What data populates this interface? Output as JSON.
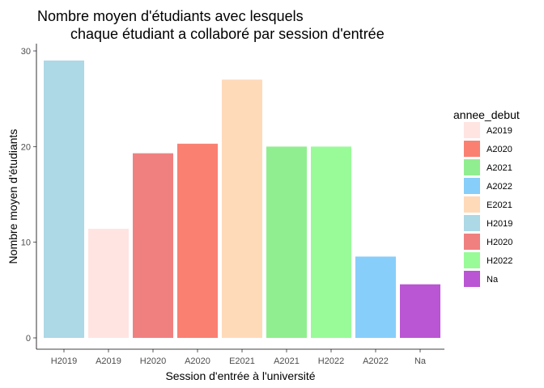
{
  "chart_data": {
    "type": "bar",
    "title_line1": "Nombre moyen d'étudiants avec lesquels",
    "title_line2": "chaque étudiant a collaboré par session d'entrée",
    "xlabel": "Session d'entrée à l'université",
    "ylabel": "Nombre moyen d'étudiants",
    "ylim": [
      0,
      30
    ],
    "yticks": [
      0,
      10,
      20,
      30
    ],
    "grid": false,
    "legend_position": "right",
    "legend_title": "annee_debut",
    "categories": [
      "H2019",
      "A2019",
      "H2020",
      "A2020",
      "E2021",
      "A2021",
      "H2022",
      "A2022",
      "Na"
    ],
    "values": [
      29.0,
      11.4,
      19.3,
      20.3,
      27.0,
      20.0,
      20.0,
      8.5,
      5.6
    ],
    "bar_colors": [
      "#ADD8E6",
      "#FFE4E1",
      "#F08080",
      "#FA8072",
      "#FFDAB9",
      "#90EE90",
      "#98FB98",
      "#87CEFA",
      "#BA55D3"
    ],
    "legend": [
      {
        "label": "A2019",
        "color": "#FFE4E1"
      },
      {
        "label": "A2020",
        "color": "#FA8072"
      },
      {
        "label": "A2021",
        "color": "#90EE90"
      },
      {
        "label": "A2022",
        "color": "#87CEFA"
      },
      {
        "label": "E2021",
        "color": "#FFDAB9"
      },
      {
        "label": "H2019",
        "color": "#ADD8E6"
      },
      {
        "label": "H2020",
        "color": "#F08080"
      },
      {
        "label": "H2022",
        "color": "#98FB98"
      },
      {
        "label": "Na",
        "color": "#BA55D3"
      }
    ]
  }
}
